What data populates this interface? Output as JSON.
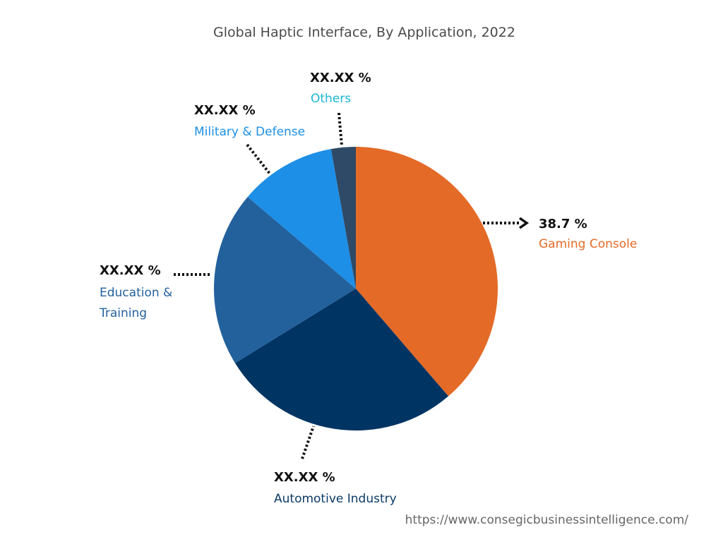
{
  "chart_data": {
    "type": "pie",
    "title": "Global Haptic Interface, By Application, 2022",
    "slices": [
      {
        "label": "Gaming Console",
        "value": 38.7,
        "value_label": "38.7 %",
        "color": "#E46A27"
      },
      {
        "label": "Automotive Industry",
        "value": 27.5,
        "value_label": "XX.XX %",
        "color": "#003463"
      },
      {
        "label": "Education & Training",
        "value": 20.0,
        "value_label": "XX.XX %",
        "color": "#23619D"
      },
      {
        "label": "Military & Defense",
        "value": 11.0,
        "value_label": "XX.XX %",
        "color": "#1D8FE6"
      },
      {
        "label": "Others",
        "value": 2.8,
        "value_label": "XX.XX %",
        "color": "#2F4A66"
      }
    ],
    "label_colors": {
      "Gaming Console": "#E46A27",
      "Automotive Industry": "#0B3A68",
      "Education & Training": "#23619D",
      "Military & Defense": "#1D8FE6",
      "Others": "#19B7D6"
    },
    "legend": "none",
    "grid": false
  },
  "source_url": "https://www.consegicbusinessintelligence.com/"
}
